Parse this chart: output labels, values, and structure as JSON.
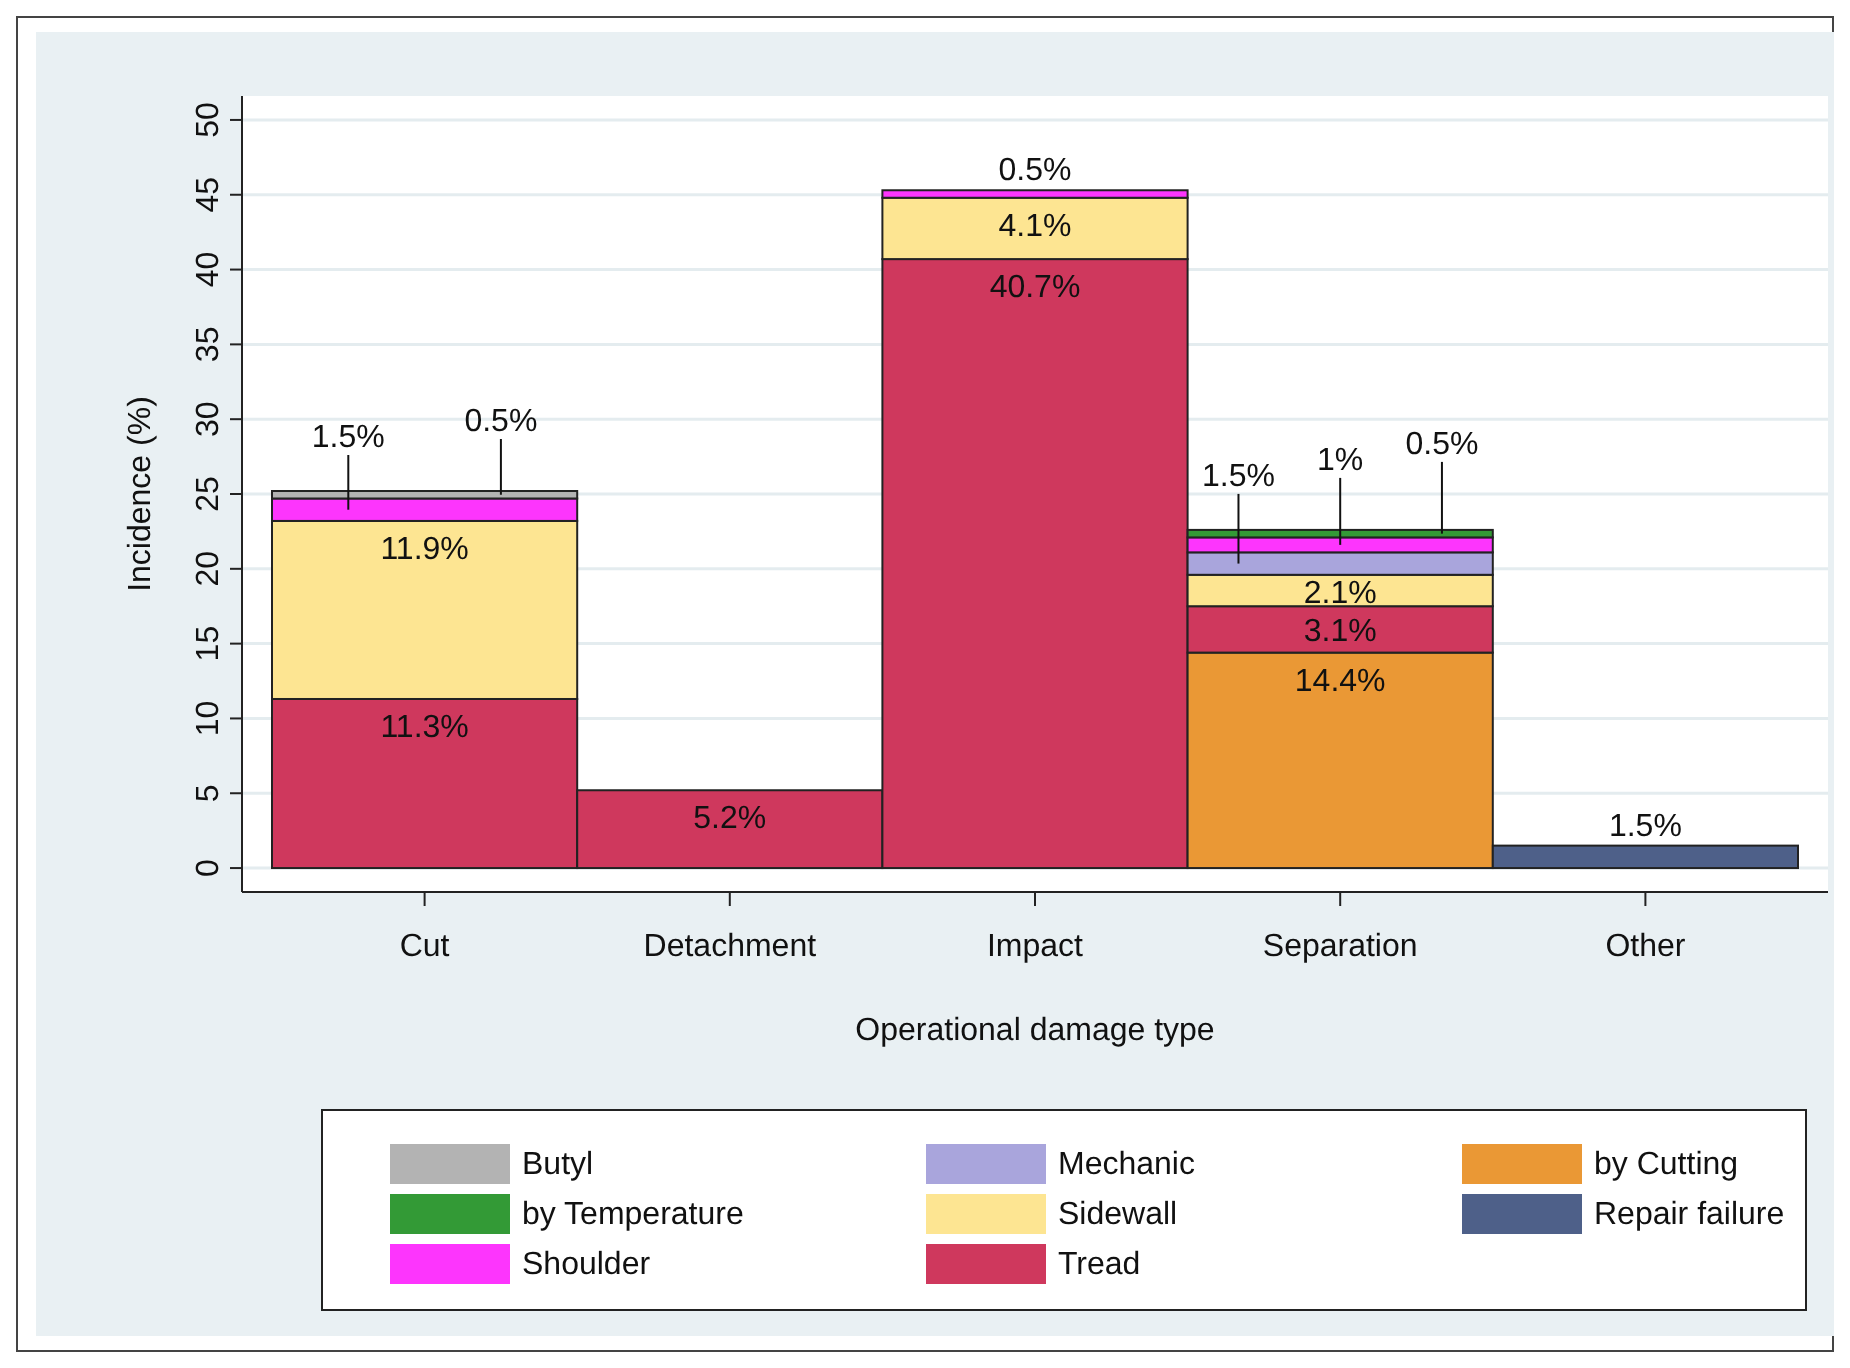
{
  "chart_data": {
    "type": "bar",
    "stacked": true,
    "xlabel": "Operational damage type",
    "ylabel": "Incidence (%)",
    "categories": [
      "Cut",
      "Detachment",
      "Impact",
      "Separation",
      "Other"
    ],
    "ylim": [
      -1.6,
      51.6
    ],
    "yticks": [
      0,
      5,
      10,
      15,
      20,
      25,
      30,
      35,
      40,
      45,
      50
    ],
    "grid": "y",
    "legend": "bottom",
    "series": [
      {
        "name": "Repair failure",
        "color": "#4e6089",
        "values": [
          null,
          null,
          null,
          null,
          1.5
        ],
        "value_labels": [
          null,
          null,
          null,
          null,
          "1.5%"
        ]
      },
      {
        "name": "by Cutting",
        "color": "#ea9835",
        "values": [
          null,
          null,
          null,
          14.4,
          null
        ],
        "value_labels": [
          null,
          null,
          null,
          "14.4%",
          null
        ]
      },
      {
        "name": "Tread",
        "color": "#cf385d",
        "values": [
          11.3,
          5.2,
          40.7,
          3.1,
          null
        ],
        "value_labels": [
          "11.3%",
          "5.2%",
          "40.7%",
          "3.1%",
          null
        ]
      },
      {
        "name": "Sidewall",
        "color": "#fde592",
        "values": [
          11.9,
          null,
          4.1,
          2.1,
          null
        ],
        "value_labels": [
          "11.9%",
          null,
          "4.1%",
          "2.1%",
          null
        ]
      },
      {
        "name": "Mechanic",
        "color": "#a9a5dc",
        "values": [
          null,
          null,
          null,
          1.5,
          null
        ],
        "value_labels": [
          null,
          null,
          null,
          "1.5%",
          null
        ]
      },
      {
        "name": "Shoulder",
        "color": "#fd35fd",
        "values": [
          1.5,
          null,
          0.5,
          1,
          null
        ],
        "value_labels": [
          "1.5%",
          null,
          "0.5%",
          "1%",
          null
        ]
      },
      {
        "name": "by Temperature",
        "color": "#339a36",
        "values": [
          null,
          null,
          null,
          0.5,
          null
        ],
        "value_labels": [
          null,
          null,
          null,
          "0.5%",
          null
        ]
      },
      {
        "name": "Butyl",
        "color": "#b3b3b3",
        "values": [
          0.5,
          null,
          null,
          null,
          null
        ],
        "value_labels": [
          "0.5%",
          null,
          null,
          null,
          null
        ]
      }
    ]
  }
}
